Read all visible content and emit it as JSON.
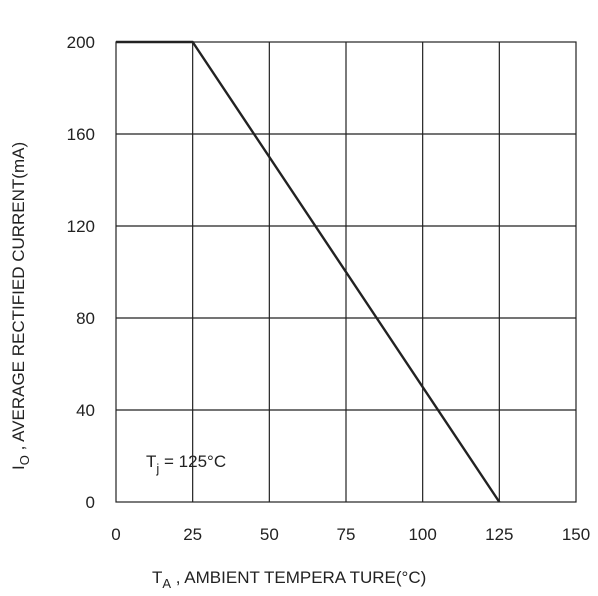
{
  "chart_data": {
    "type": "line",
    "x": [
      0,
      25,
      125
    ],
    "series": [
      {
        "values": [
          200,
          200,
          0
        ]
      }
    ],
    "xlim": [
      0,
      150
    ],
    "ylim": [
      0,
      200
    ],
    "xticks": [
      0,
      25,
      50,
      75,
      100,
      125,
      150
    ],
    "yticks": [
      0,
      40,
      80,
      120,
      160,
      200
    ],
    "xtick_labels": [
      "0",
      "25",
      "50",
      "75",
      "100",
      "125",
      "150"
    ],
    "ytick_labels": [
      "0",
      "40",
      "80",
      "120",
      "160",
      "200"
    ],
    "xlabel": {
      "symbol": "T",
      "subscript": "A",
      "text": " , AMBIENT   TEMPERA  TURE(°C)"
    },
    "ylabel": {
      "symbol": "I",
      "subscript": "O",
      "text": " , AVERAGE  RECTIFIED  CURRENT(mA)"
    },
    "annotation": {
      "symbol": "T",
      "subscript": "j",
      "text": " = 125°C"
    },
    "grid": true,
    "legend": "none",
    "line_color": "#222222",
    "grid_color": "#222222"
  }
}
